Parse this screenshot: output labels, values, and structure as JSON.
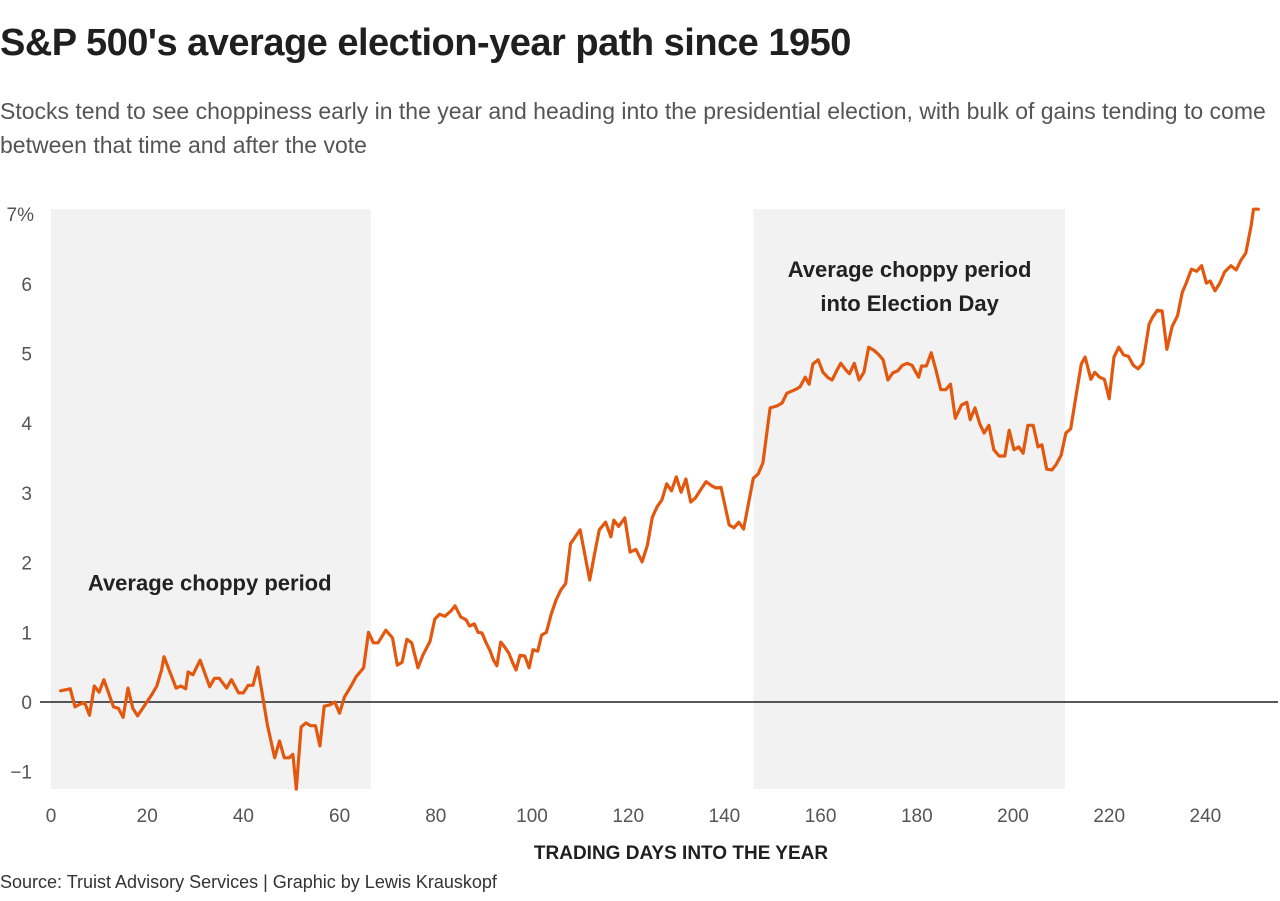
{
  "header": {
    "title": "S&P 500's average election-year path since 1950",
    "subtitle": "Stocks tend to see choppiness early in the year and heading into the presidential election, with bulk of gains tending to come between that time and after the vote"
  },
  "footer": {
    "source": "Source: Truist Advisory Services | Graphic by Lewis Krauskopf"
  },
  "chart_data": {
    "type": "line",
    "title": "S&P 500's average election-year path since 1950",
    "xlabel": "TRADING DAYS INTO THE YEAR",
    "ylabel": "",
    "xlim": [
      0,
      252
    ],
    "ylim": [
      -1.25,
      7.1
    ],
    "xticks": [
      0,
      20,
      40,
      60,
      80,
      100,
      120,
      140,
      160,
      180,
      200,
      220,
      240
    ],
    "xtick_labels": [
      "0",
      "20",
      "40",
      "60",
      "80",
      "100",
      "120",
      "140",
      "160",
      "180",
      "200",
      "220",
      "240"
    ],
    "yticks": [
      -1,
      0,
      1,
      2,
      3,
      4,
      5,
      6,
      7
    ],
    "ytick_labels": [
      "−1",
      "0",
      "1",
      "2",
      "3",
      "4",
      "5",
      "6",
      "7%"
    ],
    "grid": false,
    "zero_line": true,
    "line_color": "#e3580f",
    "shaded_color": "#f2f2f2",
    "shaded_regions": [
      {
        "name": "Average choppy period",
        "x_start": 0,
        "x_end": 66.5
      },
      {
        "name": "Average choppy period into Election Day",
        "x_start": 146,
        "x_end": 210.8
      }
    ],
    "annotations": [
      {
        "lines": [
          "Average choppy period"
        ],
        "x": 33,
        "y": 1.6
      },
      {
        "lines": [
          "Average choppy period",
          "into Election Day"
        ],
        "x": 178.5,
        "y": 6.1
      }
    ],
    "series": [
      {
        "name": "S&P 500 average election-year path (%)",
        "x": [
          2,
          4,
          5,
          6,
          7,
          8,
          9,
          10,
          11,
          13,
          14,
          15,
          16,
          17,
          18,
          21,
          22,
          23,
          23.5,
          26,
          27,
          28,
          28.5,
          29.5,
          31,
          33,
          34,
          35,
          36.5,
          37.5,
          39,
          40,
          41,
          42,
          43,
          45,
          46.5,
          47.5,
          48.5,
          49.5,
          50.3,
          51,
          52,
          53,
          54,
          55,
          55.9,
          56.8,
          58,
          59,
          60,
          61,
          62.4,
          63.4,
          65,
          66,
          67,
          68,
          69.6,
          71,
          72,
          73,
          74,
          75,
          76.3,
          77.3,
          78.8,
          79.8,
          80.8,
          81.9,
          83.2,
          84,
          85.2,
          86.3,
          87,
          88,
          88.8,
          89.6,
          90.4,
          91.3,
          92,
          92.7,
          93.5,
          94,
          95.2,
          96,
          96.7,
          97.5,
          98.5,
          99.4,
          100.2,
          101.2,
          102,
          103,
          104,
          105,
          106,
          107,
          108,
          110,
          112,
          113,
          114,
          115.3,
          116.4,
          117,
          118,
          119.3,
          120.4,
          121.6,
          122.9,
          124,
          125,
          126,
          127,
          128,
          129,
          130,
          131,
          132,
          133,
          134,
          135.3,
          136.2,
          137.4,
          138.3,
          139.3,
          141,
          142,
          143,
          144,
          146,
          147,
          148,
          149.5,
          151,
          152,
          153,
          154.7,
          155.7,
          156.8,
          157.6,
          158.4,
          159.5,
          160.5,
          161.6,
          162.4,
          163.4,
          164.2,
          165.3,
          166,
          167,
          168,
          169,
          170,
          171,
          172,
          173,
          174,
          175,
          176,
          177,
          178,
          179,
          180.4,
          181,
          182,
          183,
          184,
          185,
          186,
          187,
          188,
          189.3,
          190.4,
          191.1,
          192.1,
          193.1,
          194,
          195,
          196,
          197.1,
          198.3,
          199.2,
          200.2,
          201.2,
          202.1,
          203.1,
          204.2,
          205.2,
          206,
          207,
          208.1,
          209,
          210,
          211,
          212,
          213.1,
          214.2,
          215,
          216.2,
          217,
          218,
          219,
          220,
          221,
          222,
          223,
          224,
          225,
          226,
          227,
          228.3,
          229,
          230,
          231,
          232,
          233.1,
          234.2,
          235.2,
          236,
          237.1,
          238.2,
          239.2,
          240.2,
          241,
          242,
          243,
          244,
          245.3,
          246.4,
          247.4,
          248.4,
          249.5,
          250,
          251
        ],
        "y": [
          0.16,
          0.19,
          -0.07,
          -0.03,
          -0.01,
          -0.19,
          0.23,
          0.14,
          0.32,
          -0.07,
          -0.09,
          -0.22,
          0.2,
          -0.09,
          -0.2,
          0.11,
          0.23,
          0.46,
          0.65,
          0.2,
          0.23,
          0.19,
          0.43,
          0.39,
          0.6,
          0.22,
          0.34,
          0.34,
          0.2,
          0.32,
          0.13,
          0.13,
          0.24,
          0.24,
          0.5,
          -0.33,
          -0.8,
          -0.56,
          -0.8,
          -0.8,
          -0.75,
          -1.25,
          -0.36,
          -0.3,
          -0.34,
          -0.34,
          -0.63,
          -0.06,
          -0.04,
          0,
          -0.16,
          0.07,
          0.23,
          0.36,
          0.49,
          1.0,
          0.85,
          0.85,
          1.03,
          0.92,
          0.53,
          0.57,
          0.9,
          0.85,
          0.49,
          0.67,
          0.87,
          1.19,
          1.26,
          1.23,
          1.31,
          1.38,
          1.22,
          1.18,
          1.09,
          1.12,
          1.0,
          0.99,
          0.86,
          0.73,
          0.6,
          0.52,
          0.86,
          0.82,
          0.7,
          0.56,
          0.46,
          0.67,
          0.66,
          0.49,
          0.75,
          0.73,
          0.96,
          1.0,
          1.26,
          1.46,
          1.61,
          1.7,
          2.27,
          2.47,
          1.75,
          2.12,
          2.47,
          2.58,
          2.37,
          2.61,
          2.52,
          2.64,
          2.15,
          2.19,
          2.01,
          2.25,
          2.65,
          2.8,
          2.9,
          3.13,
          3.03,
          3.23,
          3.01,
          3.2,
          2.87,
          2.93,
          3.07,
          3.16,
          3.1,
          3.07,
          3.08,
          2.54,
          2.5,
          2.58,
          2.48,
          3.21,
          3.27,
          3.43,
          4.22,
          4.25,
          4.29,
          4.43,
          4.48,
          4.52,
          4.66,
          4.56,
          4.85,
          4.91,
          4.73,
          4.65,
          4.62,
          4.76,
          4.86,
          4.76,
          4.71,
          4.86,
          4.62,
          4.73,
          5.09,
          5.05,
          4.99,
          4.91,
          4.62,
          4.72,
          4.75,
          4.83,
          4.86,
          4.83,
          4.66,
          4.82,
          4.82,
          5.01,
          4.76,
          4.48,
          4.48,
          4.56,
          4.07,
          4.26,
          4.3,
          4.05,
          4.22,
          3.99,
          3.86,
          3.97,
          3.62,
          3.53,
          3.53,
          3.9,
          3.62,
          3.66,
          3.57,
          3.97,
          3.97,
          3.66,
          3.69,
          3.34,
          3.33,
          3.41,
          3.54,
          3.86,
          3.92,
          4.39,
          4.85,
          4.95,
          4.63,
          4.73,
          4.66,
          4.63,
          4.35,
          4.95,
          5.09,
          4.98,
          4.96,
          4.83,
          4.78,
          4.86,
          5.42,
          5.52,
          5.62,
          5.61,
          5.06,
          5.39,
          5.54,
          5.88,
          6.01,
          6.21,
          6.18,
          6.26,
          6.01,
          6.04,
          5.9,
          6.01,
          6.17,
          6.26,
          6.2,
          6.34,
          6.44,
          6.83,
          7.07,
          7.07
        ]
      }
    ]
  }
}
